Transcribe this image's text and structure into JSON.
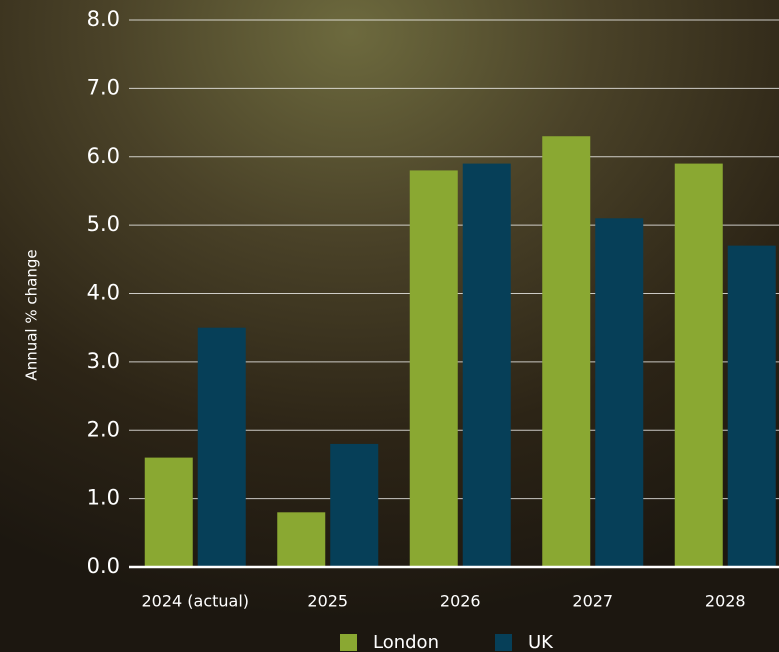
{
  "chart_data": {
    "type": "bar",
    "y_label": "Annual % change",
    "categories": [
      "2024 (actual)",
      "2025",
      "2026",
      "2027",
      "2028"
    ],
    "series": [
      {
        "name": "London",
        "color": "#8aa832",
        "values": [
          1.6,
          0.8,
          5.8,
          6.3,
          5.9
        ]
      },
      {
        "name": "UK",
        "color": "#063f58",
        "values": [
          3.5,
          1.8,
          5.9,
          5.1,
          4.7
        ]
      }
    ],
    "ylim": [
      0,
      8
    ],
    "yticks": [
      {
        "value": 0,
        "label": "0.0"
      },
      {
        "value": 1,
        "label": "1.0"
      },
      {
        "value": 2,
        "label": "2.0"
      },
      {
        "value": 3,
        "label": "3.0"
      },
      {
        "value": 4,
        "label": "4.0"
      },
      {
        "value": 5,
        "label": "5.0"
      },
      {
        "value": 6,
        "label": "6.0"
      },
      {
        "value": 7,
        "label": "7.0"
      },
      {
        "value": 8,
        "label": "8.0"
      }
    ],
    "grid": true
  }
}
